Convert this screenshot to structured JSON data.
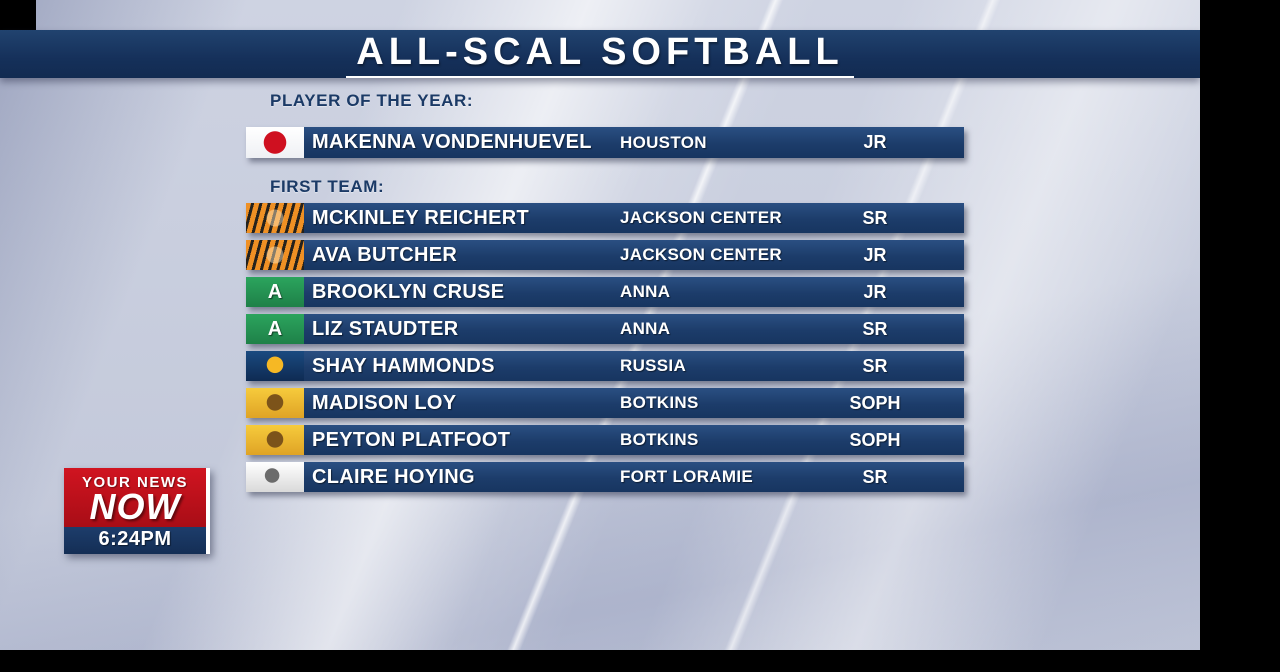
{
  "title": "ALL-SCAL SOFTBALL",
  "sections": {
    "player_of_the_year": {
      "label": "PLAYER OF THE YEAR:",
      "rows": [
        {
          "name": "MAKENNA VONDENHUEVEL",
          "school": "HOUSTON",
          "year": "JR",
          "icon": "houston-eagle-icon"
        }
      ]
    },
    "first_team": {
      "label": "FIRST TEAM:",
      "rows": [
        {
          "name": "MCKINLEY REICHERT",
          "school": "JACKSON CENTER",
          "year": "SR",
          "icon": "jackson-center-tiger-icon"
        },
        {
          "name": "AVA BUTCHER",
          "school": "JACKSON CENTER",
          "year": "JR",
          "icon": "jackson-center-tiger-icon"
        },
        {
          "name": "BROOKLYN CRUSE",
          "school": "ANNA",
          "year": "JR",
          "icon": "anna-rockets-icon",
          "icon_glyph": "A"
        },
        {
          "name": "LIZ STAUDTER",
          "school": "ANNA",
          "year": "SR",
          "icon": "anna-rockets-icon",
          "icon_glyph": "A"
        },
        {
          "name": "SHAY HAMMONDS",
          "school": "RUSSIA",
          "year": "SR",
          "icon": "russia-raiders-icon"
        },
        {
          "name": "MADISON LOY",
          "school": "BOTKINS",
          "year": "SOPH",
          "icon": "botkins-trojans-icon"
        },
        {
          "name": "PEYTON PLATFOOT",
          "school": "BOTKINS",
          "year": "SOPH",
          "icon": "botkins-trojans-icon"
        },
        {
          "name": "CLAIRE HOYING",
          "school": "FORT LORAMIE",
          "year": "SR",
          "icon": "fort-loramie-icon"
        }
      ]
    }
  },
  "logo": {
    "line1": "YOUR NEWS",
    "line2": "NOW",
    "time": "6:24PM"
  },
  "colors": {
    "title_navy": "#15305a",
    "row_navy": "#1c3c6a",
    "label_navy": "#1b3a66",
    "logo_red": "#c01019",
    "background": "#c6cbdc"
  }
}
